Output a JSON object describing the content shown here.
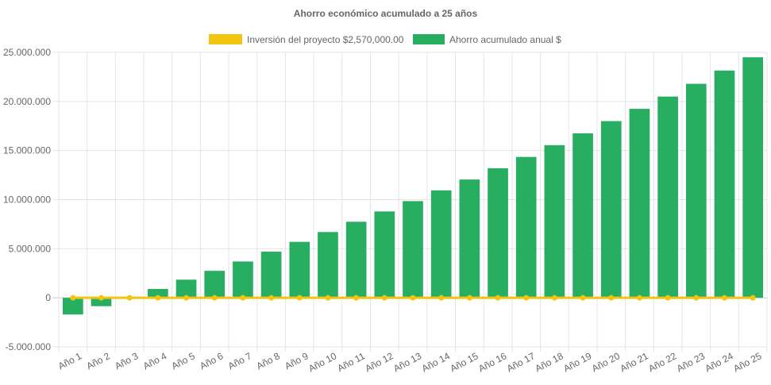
{
  "chart_data": {
    "type": "bar",
    "title": "Ahorro económico acumulado a 25 años",
    "categories": [
      "Año 1",
      "Año 2",
      "Año 3",
      "Año 4",
      "Año 5",
      "Año 6",
      "Año 7",
      "Año 8",
      "Año 9",
      "Año 10",
      "Año 11",
      "Año 12",
      "Año 13",
      "Año 14",
      "Año 15",
      "Año 16",
      "Año 17",
      "Año 18",
      "Año 19",
      "Año 20",
      "Año 21",
      "Año 22",
      "Año 23",
      "Año 24",
      "Año 25"
    ],
    "series": [
      {
        "name": "Inversión del proyecto $2,570,000.00",
        "type": "line",
        "color": "#f1c40f",
        "values": [
          0,
          0,
          0,
          0,
          0,
          0,
          0,
          0,
          0,
          0,
          0,
          0,
          0,
          0,
          0,
          0,
          0,
          0,
          0,
          0,
          0,
          0,
          0,
          0,
          0
        ]
      },
      {
        "name": "Ahorro acumulado anual $",
        "type": "bar",
        "color": "#27ae60",
        "values": [
          -1700000,
          -850000,
          0,
          900000,
          1850000,
          2750000,
          3700000,
          4700000,
          5700000,
          6700000,
          7750000,
          8800000,
          9850000,
          10950000,
          12050000,
          13200000,
          14350000,
          15550000,
          16750000,
          18000000,
          19250000,
          20500000,
          21800000,
          23150000,
          24500000
        ]
      }
    ],
    "ylim": [
      -5000000,
      25000000
    ],
    "yticks": [
      "25.000.000",
      "20.000.000",
      "15.000.000",
      "10.000.000",
      "5.000.000",
      "0",
      "-5.000.000"
    ],
    "ytick_values": [
      25000000,
      20000000,
      15000000,
      10000000,
      5000000,
      0,
      -5000000
    ],
    "xlabel": "",
    "ylabel": "",
    "grid": true,
    "legend": "top-center"
  }
}
